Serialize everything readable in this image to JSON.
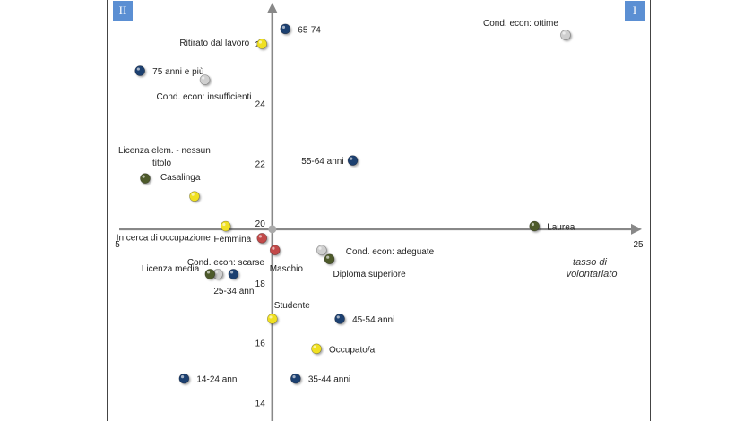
{
  "chart_data": {
    "type": "scatter",
    "x_axis": {
      "min": 5,
      "max": 25,
      "origin": 10.9,
      "tick_labels": [
        "5",
        "25"
      ],
      "label": "tasso di volontariato"
    },
    "y_axis": {
      "min": 13.8,
      "max": 27.2,
      "origin": 19.8,
      "tick_labels": [
        "14",
        "16",
        "18",
        "20",
        "22",
        "24",
        "26"
      ]
    },
    "quadrants": [
      "I",
      "II"
    ],
    "colors": {
      "blue": "#1f3f70",
      "olive": "#4e5a2b",
      "yellow": "#f0e020",
      "red": "#c24848",
      "gray": "#cfcfcf",
      "axis": "#888888"
    },
    "points": [
      {
        "label": "Ritirato dal lavoro",
        "x": 10.5,
        "y": 26.0,
        "color": "yellow"
      },
      {
        "label": "65-74",
        "x": 11.4,
        "y": 26.5,
        "color": "blue"
      },
      {
        "label": "Cond. econ: ottime",
        "x": 22.2,
        "y": 26.3,
        "color": "gray"
      },
      {
        "label": "75 anni e più",
        "x": 5.8,
        "y": 25.1,
        "color": "blue"
      },
      {
        "label": "Cond. econ: insufficienti",
        "x": 8.3,
        "y": 24.8,
        "color": "gray"
      },
      {
        "label": "55-64 anni",
        "x": 14.0,
        "y": 22.1,
        "color": "blue"
      },
      {
        "label": "Licenza elem. - nessun titolo",
        "x": 6.0,
        "y": 21.5,
        "color": "olive"
      },
      {
        "label": "Casalinga",
        "x": 7.9,
        "y": 20.9,
        "color": "yellow"
      },
      {
        "label": "In cerca di occupazione",
        "x": 9.1,
        "y": 19.9,
        "color": "yellow"
      },
      {
        "label": "Laurea",
        "x": 21.0,
        "y": 19.9,
        "color": "olive"
      },
      {
        "label": "Femmina",
        "x": 10.5,
        "y": 19.5,
        "color": "red"
      },
      {
        "label": "Maschio",
        "x": 11.0,
        "y": 19.1,
        "color": "red"
      },
      {
        "label": "Cond. econ: adeguate",
        "x": 12.8,
        "y": 19.1,
        "color": "gray"
      },
      {
        "label": "Cond. econ: scarse",
        "x": 8.8,
        "y": 18.3,
        "color": "gray"
      },
      {
        "label": "Diploma superiore",
        "x": 13.1,
        "y": 18.8,
        "color": "olive"
      },
      {
        "label": "Licenza media",
        "x": 8.5,
        "y": 18.3,
        "color": "olive"
      },
      {
        "label": "25-34 anni",
        "x": 9.4,
        "y": 18.3,
        "color": "blue"
      },
      {
        "label": "Studente",
        "x": 10.9,
        "y": 16.8,
        "color": "yellow"
      },
      {
        "label": "45-54 anni",
        "x": 13.5,
        "y": 16.8,
        "color": "blue"
      },
      {
        "label": "Occupato/a",
        "x": 12.6,
        "y": 15.8,
        "color": "yellow"
      },
      {
        "label": "14-24 anni",
        "x": 7.5,
        "y": 14.8,
        "color": "blue"
      },
      {
        "label": "35-44 anni",
        "x": 11.8,
        "y": 14.8,
        "color": "blue"
      }
    ]
  }
}
